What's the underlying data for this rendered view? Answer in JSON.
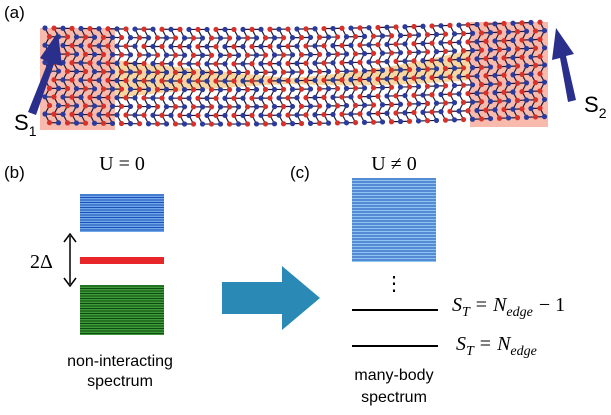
{
  "panel_a": {
    "label": "(a)",
    "spin_left": {
      "symbol": "S",
      "subscript": "1"
    },
    "spin_right": {
      "symbol": "S",
      "subscript": "2"
    }
  },
  "panel_b": {
    "label": "(b)",
    "title": "U = 0",
    "gap_label": "2Δ",
    "caption": [
      "non-interacting",
      "spectrum"
    ]
  },
  "panel_c": {
    "label": "(c)",
    "title": "U ≠ 0",
    "ellipsis": "⋮",
    "levels": [
      {
        "symbol": "S",
        "subscript": "T",
        "relation": "=",
        "rhs": "N",
        "rhs_subscript": "edge",
        "tail": "− 1"
      },
      {
        "symbol": "S",
        "subscript": "T",
        "relation": "=",
        "rhs": "N",
        "rhs_subscript": "edge"
      }
    ],
    "caption": [
      "many-body",
      "spectrum"
    ]
  }
}
